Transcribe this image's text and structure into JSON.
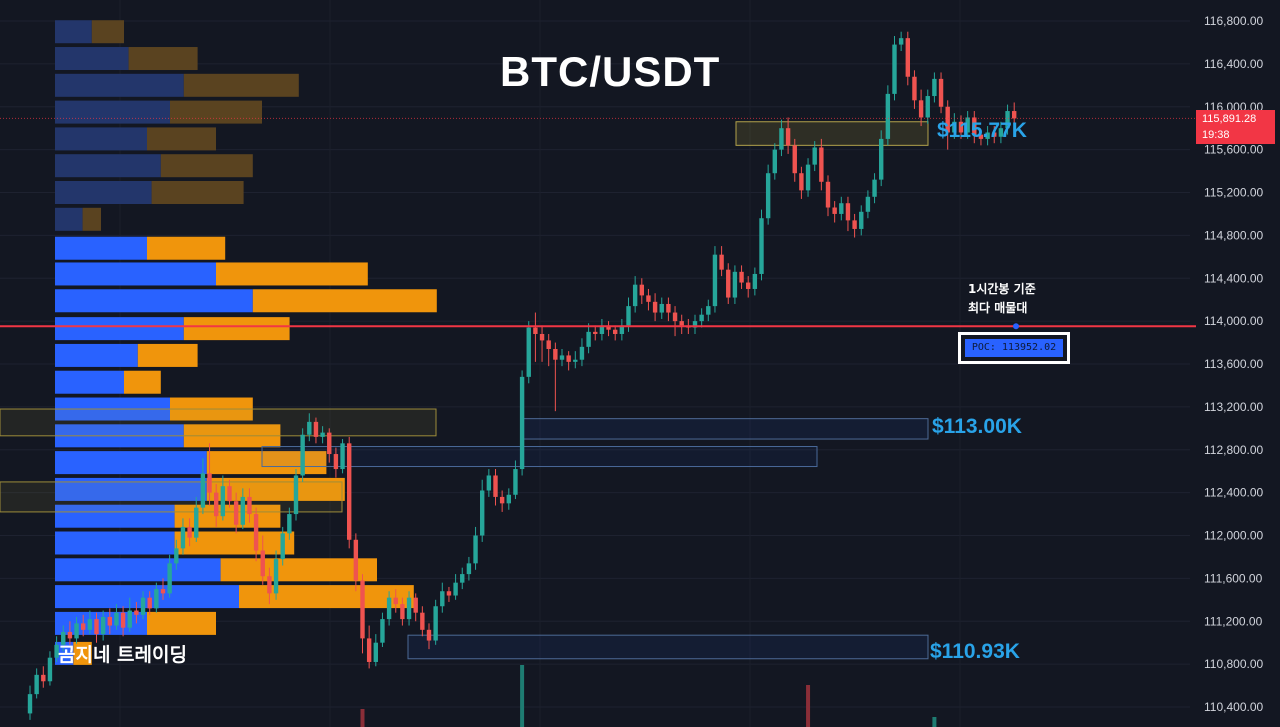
{
  "title": "BTC/USDT",
  "watermark": "곰지네 트레이딩",
  "poc_note": [
    "1시간봉 기준",
    "최다 매물대"
  ],
  "poc_label": "POC: 113952.02",
  "current_price": {
    "value": "115,891.28",
    "countdown": "19:38"
  },
  "zone_labels": [
    "$115.77K",
    "$113.00K",
    "$110.93K"
  ],
  "colors": {
    "background": "#131722",
    "up": "#26a69a",
    "down": "#ef5350",
    "vp_up": "#2962ff",
    "vp_down": "#f0950c",
    "poc_line": "#f23645",
    "zone_label": "#29a3e8"
  },
  "chart_data": {
    "type": "candlestick",
    "title": "BTC/USDT",
    "y_axis": {
      "min": 110400,
      "max": 116800,
      "ticks": [
        "116,800.00",
        "116,400.00",
        "116,000.00",
        "115,600.00",
        "115,200.00",
        "114,800.00",
        "114,400.00",
        "114,000.00",
        "113,600.00",
        "113,200.00",
        "112,800.00",
        "112,400.00",
        "112,000.00",
        "111,600.00",
        "111,200.00",
        "110,800.00",
        "110,400.00"
      ]
    },
    "poc_price": 113952.02,
    "current_price": 115891.28,
    "support_resistance_zones": [
      {
        "label": "$115.77K",
        "low": 115640,
        "high": 115860
      },
      {
        "label": "$113.00K",
        "low": 112900,
        "high": 113090
      },
      {
        "label": "$110.93K",
        "low": 110850,
        "high": 111070
      }
    ],
    "volume_profile_rows": [
      {
        "price": 116700,
        "buy": 8,
        "sell": 7
      },
      {
        "price": 116450,
        "buy": 16,
        "sell": 15
      },
      {
        "price": 116200,
        "buy": 28,
        "sell": 25
      },
      {
        "price": 115950,
        "buy": 25,
        "sell": 20
      },
      {
        "price": 115700,
        "buy": 20,
        "sell": 15
      },
      {
        "price": 115450,
        "buy": 23,
        "sell": 20
      },
      {
        "price": 115200,
        "buy": 21,
        "sell": 20
      },
      {
        "price": 114950,
        "buy": 6,
        "sell": 4
      },
      {
        "price": 114680,
        "buy": 20,
        "sell": 17
      },
      {
        "price": 114440,
        "buy": 35,
        "sell": 33
      },
      {
        "price": 114190,
        "buy": 43,
        "sell": 40
      },
      {
        "price": 113930,
        "buy": 28,
        "sell": 23
      },
      {
        "price": 113680,
        "buy": 18,
        "sell": 13
      },
      {
        "price": 113430,
        "buy": 15,
        "sell": 8
      },
      {
        "price": 113180,
        "buy": 25,
        "sell": 18
      },
      {
        "price": 112930,
        "buy": 28,
        "sell": 21
      },
      {
        "price": 112680,
        "buy": 33,
        "sell": 26
      },
      {
        "price": 112430,
        "buy": 33,
        "sell": 30
      },
      {
        "price": 112180,
        "buy": 26,
        "sell": 23
      },
      {
        "price": 111930,
        "buy": 26,
        "sell": 26
      },
      {
        "price": 111680,
        "buy": 36,
        "sell": 34
      },
      {
        "price": 111430,
        "buy": 40,
        "sell": 38
      },
      {
        "price": 111180,
        "buy": 20,
        "sell": 15
      },
      {
        "price": 110900,
        "buy": 4,
        "sell": 4
      }
    ],
    "candles": [
      [
        110340,
        110520,
        110280,
        110600
      ],
      [
        110520,
        110700,
        110480,
        110760
      ],
      [
        110700,
        110640,
        110580,
        110780
      ],
      [
        110640,
        110860,
        110600,
        110920
      ],
      [
        110860,
        110980,
        110820,
        111060
      ],
      [
        110980,
        111100,
        110920,
        111160
      ],
      [
        111100,
        111040,
        110980,
        111200
      ],
      [
        111040,
        111180,
        110990,
        111240
      ],
      [
        111180,
        111120,
        111060,
        111260
      ],
      [
        111120,
        111220,
        111080,
        111300
      ],
      [
        111220,
        111080,
        111000,
        111280
      ],
      [
        111080,
        111240,
        111020,
        111300
      ],
      [
        111240,
        111160,
        111080,
        111320
      ],
      [
        111160,
        111280,
        111120,
        111360
      ],
      [
        111280,
        111140,
        111060,
        111340
      ],
      [
        111140,
        111300,
        111100,
        111420
      ],
      [
        111300,
        111260,
        111180,
        111380
      ],
      [
        111260,
        111420,
        111220,
        111480
      ],
      [
        111420,
        111320,
        111260,
        111480
      ],
      [
        111320,
        111500,
        111280,
        111560
      ],
      [
        111500,
        111460,
        111400,
        111600
      ],
      [
        111460,
        111740,
        111420,
        111820
      ],
      [
        111740,
        111880,
        111680,
        111960
      ],
      [
        111880,
        112080,
        111820,
        112160
      ],
      [
        112080,
        111980,
        111900,
        112160
      ],
      [
        111980,
        112260,
        111940,
        112360
      ],
      [
        112260,
        112580,
        112200,
        112720
      ],
      [
        112580,
        112400,
        112280,
        112860
      ],
      [
        112400,
        112180,
        112080,
        112480
      ],
      [
        112180,
        112460,
        112140,
        112560
      ],
      [
        112460,
        112320,
        112260,
        112520
      ],
      [
        112320,
        112100,
        112020,
        112400
      ],
      [
        112100,
        112360,
        112060,
        112440
      ],
      [
        112360,
        112200,
        112120,
        112440
      ],
      [
        112200,
        111860,
        111760,
        112260
      ],
      [
        111860,
        111620,
        111540,
        112000
      ],
      [
        111620,
        111460,
        111360,
        111700
      ],
      [
        111460,
        111780,
        111400,
        111860
      ],
      [
        111780,
        112020,
        111720,
        112080
      ],
      [
        112020,
        112200,
        111960,
        112260
      ],
      [
        112200,
        112560,
        112140,
        112620
      ],
      [
        112560,
        112940,
        112500,
        113000
      ],
      [
        112940,
        113060,
        112880,
        113140
      ],
      [
        113060,
        112920,
        112860,
        113100
      ],
      [
        112920,
        112960,
        112860,
        113020
      ],
      [
        112960,
        112760,
        112680,
        113000
      ],
      [
        112760,
        112620,
        112540,
        112820
      ],
      [
        112620,
        112860,
        112580,
        112900
      ],
      [
        112860,
        111960,
        111880,
        112920
      ],
      [
        111960,
        111580,
        111480,
        112020
      ],
      [
        111580,
        111040,
        110900,
        111640
      ],
      [
        111040,
        110820,
        110760,
        111160
      ],
      [
        110820,
        111000,
        110780,
        111080
      ],
      [
        111000,
        111220,
        110960,
        111280
      ],
      [
        111220,
        111420,
        111160,
        111480
      ],
      [
        111420,
        111360,
        111280,
        111500
      ],
      [
        111360,
        111220,
        111160,
        111420
      ],
      [
        111220,
        111420,
        111160,
        111480
      ],
      [
        111420,
        111280,
        111200,
        111460
      ],
      [
        111280,
        111120,
        111060,
        111340
      ],
      [
        111120,
        111020,
        110940,
        111180
      ],
      [
        111020,
        111340,
        110980,
        111400
      ],
      [
        111340,
        111480,
        111280,
        111560
      ],
      [
        111480,
        111440,
        111380,
        111520
      ],
      [
        111440,
        111560,
        111400,
        111640
      ],
      [
        111560,
        111640,
        111500,
        111700
      ],
      [
        111640,
        111740,
        111580,
        111800
      ],
      [
        111740,
        112000,
        111680,
        112080
      ],
      [
        112000,
        112420,
        111940,
        112520
      ],
      [
        112420,
        112560,
        112360,
        112620
      ],
      [
        112560,
        112360,
        112280,
        112620
      ],
      [
        112360,
        112300,
        112220,
        112420
      ],
      [
        112300,
        112380,
        112240,
        112440
      ],
      [
        112380,
        112620,
        112340,
        112700
      ],
      [
        112620,
        113480,
        112560,
        113540
      ],
      [
        113480,
        113940,
        113420,
        114000
      ],
      [
        113940,
        113880,
        113620,
        114080
      ],
      [
        113880,
        113820,
        113620,
        113960
      ],
      [
        113820,
        113740,
        113580,
        113880
      ],
      [
        113740,
        113640,
        113160,
        113800
      ],
      [
        113640,
        113680,
        113580,
        113740
      ],
      [
        113680,
        113620,
        113540,
        113720
      ],
      [
        113620,
        113640,
        113560,
        113720
      ],
      [
        113640,
        113760,
        113580,
        113840
      ],
      [
        113760,
        113900,
        113700,
        113980
      ],
      [
        113900,
        113880,
        113820,
        113960
      ],
      [
        113880,
        113960,
        113820,
        114020
      ],
      [
        113960,
        113920,
        113860,
        114000
      ],
      [
        113920,
        113880,
        113820,
        113960
      ],
      [
        113880,
        113960,
        113820,
        114020
      ],
      [
        113960,
        114140,
        113900,
        114220
      ],
      [
        114140,
        114340,
        114080,
        114420
      ],
      [
        114340,
        114240,
        114160,
        114400
      ],
      [
        114240,
        114180,
        114100,
        114300
      ],
      [
        114180,
        114080,
        114000,
        114260
      ],
      [
        114080,
        114160,
        114020,
        114220
      ],
      [
        114160,
        114080,
        114000,
        114220
      ],
      [
        114080,
        114000,
        113860,
        114140
      ],
      [
        114000,
        113960,
        113880,
        114060
      ],
      [
        113960,
        113940,
        113880,
        114020
      ],
      [
        113940,
        114000,
        113880,
        114060
      ],
      [
        114000,
        114060,
        113940,
        114120
      ],
      [
        114060,
        114140,
        114000,
        114200
      ],
      [
        114140,
        114620,
        114080,
        114700
      ],
      [
        114620,
        114480,
        114420,
        114700
      ],
      [
        114480,
        114220,
        114160,
        114540
      ],
      [
        114220,
        114460,
        114160,
        114520
      ],
      [
        114460,
        114360,
        114300,
        114520
      ],
      [
        114360,
        114300,
        114220,
        114420
      ],
      [
        114300,
        114440,
        114240,
        114500
      ],
      [
        114440,
        114960,
        114380,
        115040
      ],
      [
        114960,
        115380,
        114900,
        115460
      ],
      [
        115380,
        115600,
        115320,
        115660
      ],
      [
        115600,
        115800,
        115540,
        115880
      ],
      [
        115800,
        115640,
        115560,
        115900
      ],
      [
        115640,
        115380,
        115300,
        115700
      ],
      [
        115380,
        115220,
        115140,
        115440
      ],
      [
        115220,
        115460,
        115160,
        115520
      ],
      [
        115460,
        115620,
        115400,
        115680
      ],
      [
        115620,
        115300,
        115220,
        115700
      ],
      [
        115300,
        115060,
        114980,
        115360
      ],
      [
        115060,
        115000,
        114920,
        115120
      ],
      [
        115000,
        115100,
        114940,
        115160
      ],
      [
        115100,
        114940,
        114840,
        115160
      ],
      [
        114940,
        114860,
        114780,
        115000
      ],
      [
        114860,
        115020,
        114800,
        115080
      ],
      [
        115020,
        115160,
        114960,
        115220
      ],
      [
        115160,
        115320,
        115100,
        115380
      ],
      [
        115320,
        115700,
        115260,
        115780
      ],
      [
        115700,
        116120,
        115640,
        116200
      ],
      [
        116120,
        116580,
        116060,
        116660
      ],
      [
        116580,
        116640,
        116520,
        116700
      ],
      [
        116640,
        116280,
        116200,
        116700
      ],
      [
        116280,
        116060,
        115980,
        116340
      ],
      [
        116060,
        115900,
        115820,
        116160
      ],
      [
        115900,
        116100,
        115840,
        116160
      ],
      [
        116100,
        116260,
        116040,
        116320
      ],
      [
        116260,
        116000,
        115940,
        116320
      ],
      [
        116000,
        115760,
        115600,
        116060
      ],
      [
        115760,
        115860,
        115700,
        115940
      ],
      [
        115860,
        115760,
        115700,
        115920
      ],
      [
        115760,
        115900,
        115700,
        115960
      ],
      [
        115900,
        115740,
        115660,
        115960
      ],
      [
        115740,
        115700,
        115640,
        115780
      ],
      [
        115700,
        115760,
        115640,
        115820
      ],
      [
        115760,
        115720,
        115660,
        115820
      ],
      [
        115720,
        115800,
        115660,
        115860
      ],
      [
        115800,
        115960,
        115740,
        116020
      ],
      [
        115960,
        115891,
        115840,
        116040
      ]
    ],
    "volume_bars": [
      {
        "candle_index": 50,
        "value": 18,
        "dir": "down"
      },
      {
        "candle_index": 74,
        "value": 62,
        "dir": "up"
      },
      {
        "candle_index": 117,
        "value": 42,
        "dir": "down"
      },
      {
        "candle_index": 136,
        "value": 10,
        "dir": "up"
      }
    ]
  }
}
